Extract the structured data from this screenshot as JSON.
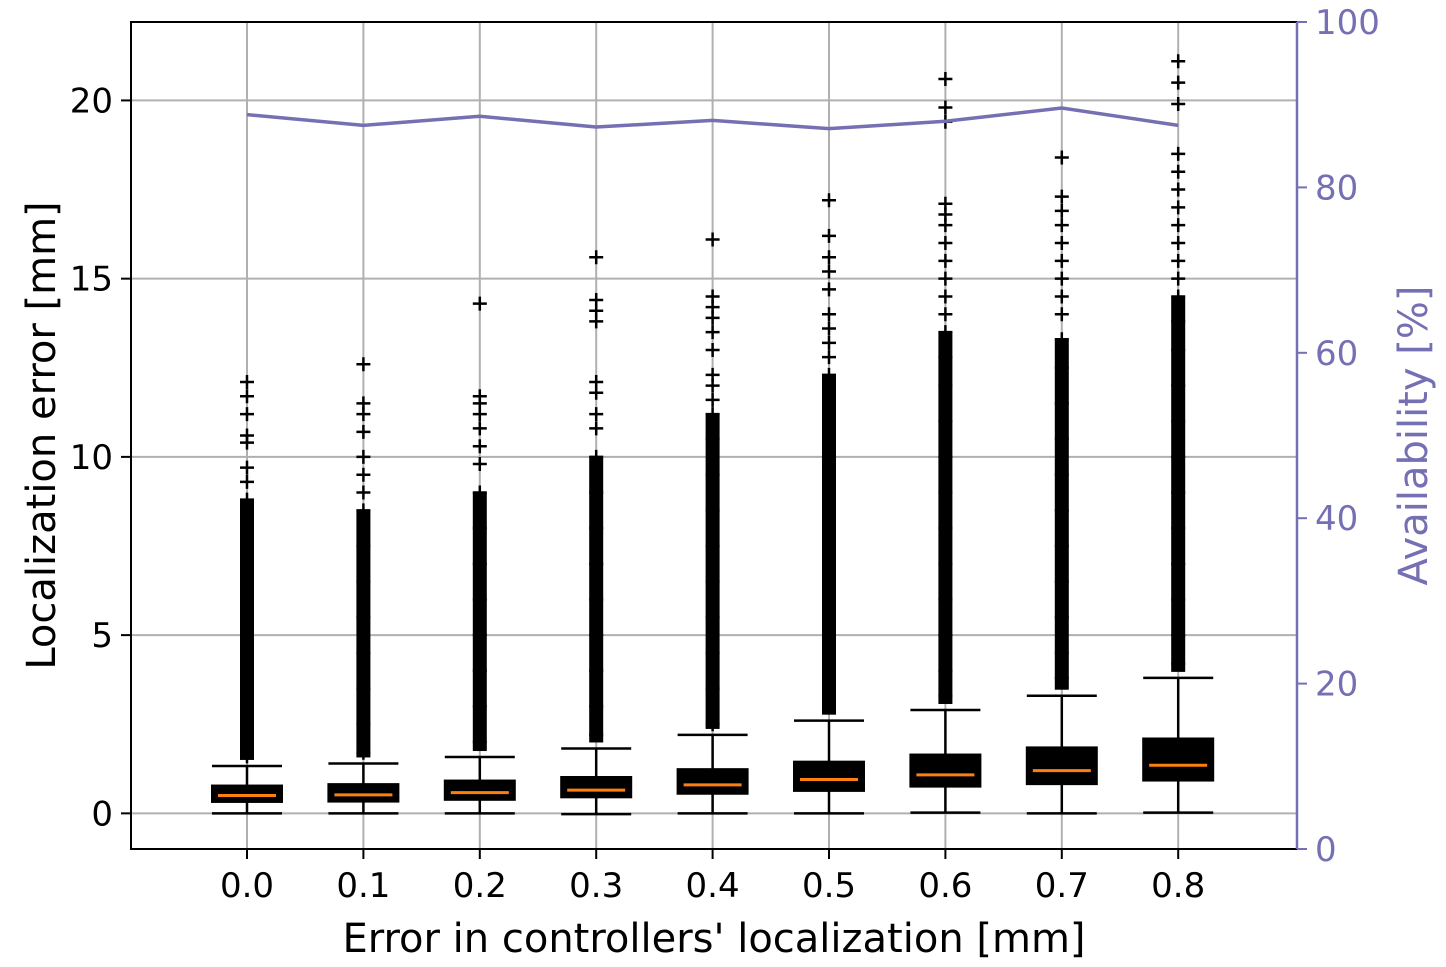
{
  "chart_data": {
    "type": "box",
    "xlabel": "Error in controllers' localization [mm]",
    "ylabel": "Localization error [mm]",
    "y2label": "Availability [%]",
    "ylim": [
      -1.0,
      22.2
    ],
    "y2lim": [
      0,
      100
    ],
    "grid": true,
    "categories": [
      "0.0",
      "0.1",
      "0.2",
      "0.3",
      "0.4",
      "0.5",
      "0.6",
      "0.7",
      "0.8"
    ],
    "yticks": [
      "0",
      "5",
      "10",
      "15",
      "20"
    ],
    "y2ticks": [
      "0",
      "20",
      "40",
      "60",
      "80",
      "100"
    ],
    "colors": {
      "box": "#000000",
      "median": "#ff7f0e",
      "availability": "#7570b3",
      "grid": "#b0b0b0"
    },
    "boxes": [
      {
        "whisker_low": 0.0,
        "q1": 0.32,
        "median": 0.5,
        "q3": 0.78,
        "whisker_high": 1.33,
        "fliers": [
          1.6,
          2.2,
          3.0,
          4.0,
          5.0,
          6.0,
          7.0,
          8.0,
          8.8,
          9.3,
          9.7,
          10.4,
          10.6,
          11.2,
          11.7,
          12.1
        ]
      },
      {
        "whisker_low": 0.0,
        "q1": 0.33,
        "median": 0.52,
        "q3": 0.82,
        "whisker_high": 1.4,
        "fliers": [
          1.7,
          2.5,
          3.5,
          4.5,
          5.5,
          6.5,
          7.5,
          8.5,
          9.0,
          9.5,
          10.0,
          10.7,
          11.2,
          11.5,
          12.6
        ]
      },
      {
        "whisker_low": 0.0,
        "q1": 0.38,
        "median": 0.58,
        "q3": 0.92,
        "whisker_high": 1.58,
        "fliers": [
          2.0,
          3.0,
          4.0,
          5.0,
          6.0,
          7.0,
          8.0,
          9.0,
          9.8,
          10.3,
          10.8,
          11.2,
          11.5,
          11.7,
          14.3
        ]
      },
      {
        "whisker_low": -0.02,
        "q1": 0.45,
        "median": 0.65,
        "q3": 1.02,
        "whisker_high": 1.82,
        "fliers": [
          2.2,
          3.0,
          4.0,
          5.0,
          6.0,
          7.0,
          8.0,
          9.0,
          10.0,
          10.8,
          11.2,
          11.8,
          12.1,
          13.8,
          14.1,
          14.4,
          15.6
        ]
      },
      {
        "whisker_low": 0.0,
        "q1": 0.55,
        "median": 0.8,
        "q3": 1.24,
        "whisker_high": 2.2,
        "fliers": [
          2.5,
          3.5,
          4.5,
          5.5,
          6.5,
          7.5,
          8.5,
          9.5,
          10.5,
          11.2,
          11.6,
          12.0,
          12.3,
          13.0,
          13.5,
          13.9,
          14.2,
          14.5,
          16.1
        ]
      },
      {
        "whisker_low": 0.0,
        "q1": 0.63,
        "median": 0.95,
        "q3": 1.45,
        "whisker_high": 2.6,
        "fliers": [
          3.0,
          4.0,
          5.0,
          6.0,
          7.0,
          8.0,
          9.0,
          10.0,
          11.0,
          11.8,
          12.3,
          12.8,
          13.2,
          13.6,
          14.0,
          14.7,
          15.2,
          15.6,
          16.2,
          17.2
        ]
      },
      {
        "whisker_low": 0.02,
        "q1": 0.75,
        "median": 1.08,
        "q3": 1.65,
        "whisker_high": 2.9,
        "fliers": [
          3.3,
          4.0,
          5.0,
          6.0,
          7.0,
          8.0,
          9.0,
          10.0,
          11.0,
          12.0,
          12.8,
          13.5,
          14.0,
          14.5,
          15.0,
          15.5,
          16.0,
          16.5,
          16.8,
          17.1,
          19.4,
          19.8,
          20.6
        ]
      },
      {
        "whisker_low": 0.0,
        "q1": 0.82,
        "median": 1.2,
        "q3": 1.85,
        "whisker_high": 3.3,
        "fliers": [
          3.8,
          4.5,
          5.5,
          6.5,
          7.5,
          8.5,
          9.5,
          10.5,
          11.5,
          12.5,
          13.3,
          14.0,
          14.5,
          15.0,
          15.5,
          16.0,
          16.5,
          16.9,
          17.3,
          18.4
        ]
      },
      {
        "whisker_low": 0.02,
        "q1": 0.92,
        "median": 1.35,
        "q3": 2.1,
        "whisker_high": 3.8,
        "fliers": [
          4.2,
          5.0,
          6.0,
          7.0,
          8.0,
          9.0,
          10.0,
          11.0,
          12.0,
          13.0,
          13.8,
          14.5,
          15.0,
          15.5,
          16.0,
          16.5,
          17.0,
          17.5,
          18.0,
          18.5,
          19.9,
          20.5,
          21.1
        ]
      }
    ],
    "availability": [
      88.8,
      87.5,
      88.6,
      87.3,
      88.1,
      87.1,
      88.0,
      89.6,
      87.5
    ]
  }
}
